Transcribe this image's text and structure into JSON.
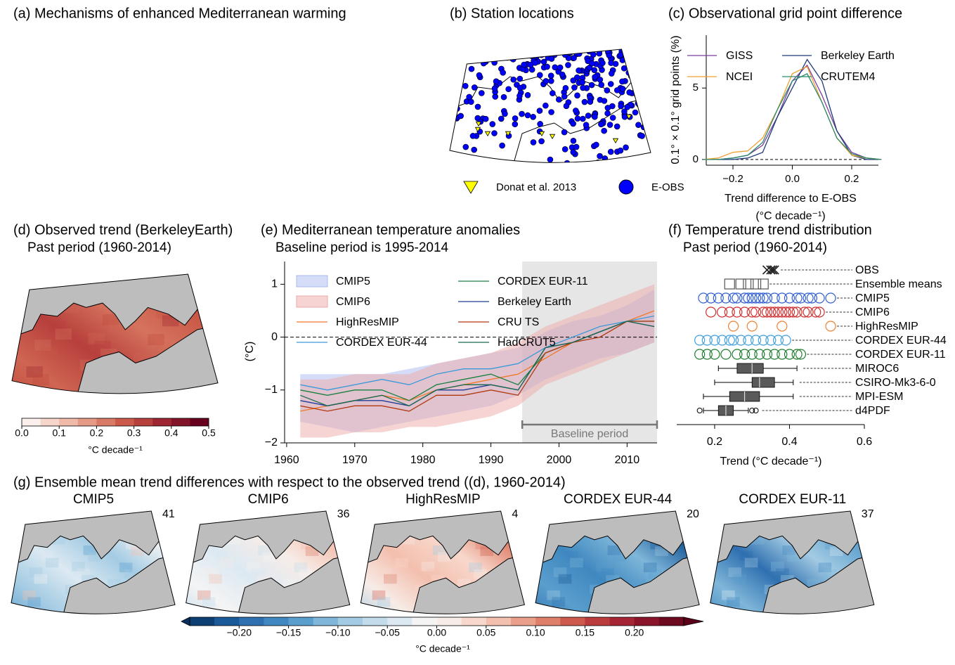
{
  "panel_a": {
    "title": "(a) Mechanisms of enhanced Mediterranean warming"
  },
  "panel_b": {
    "title": "(b) Station locations",
    "legend": [
      {
        "name": "Donat et al. 2013",
        "color": "#ffff00",
        "marker": "triangle"
      },
      {
        "name": "E-OBS",
        "color": "#0000ff",
        "marker": "circle"
      }
    ]
  },
  "panel_d": {
    "title": "(d) Observed trend (BerkeleyEarth)",
    "subtitle": "Past period (1960-2014)",
    "colorbar": {
      "colors": [
        "#fbf0ec",
        "#f6d6cb",
        "#efbaa8",
        "#e49a85",
        "#d97a66",
        "#cc5a4b",
        "#b73f3c",
        "#9e2733",
        "#841429",
        "#67001f"
      ],
      "range": [
        0,
        0.5
      ],
      "ticks": [
        {
          "value": 0,
          "label": "0.0"
        },
        0.1,
        0.2,
        0.3,
        0.4,
        0.5
      ],
      "label": "°C decade⁻¹"
    }
  },
  "chart_data": [
    {
      "type": "line",
      "title": "(c) Observational grid point difference",
      "xlabel": [
        "Trend difference to E-OBS",
        "(°C decade⁻¹)"
      ],
      "ylabel": "0.1° × 0.1° grid points (%)",
      "x": [
        -0.3,
        -0.25,
        -0.2,
        -0.15,
        -0.1,
        -0.05,
        0,
        0.05,
        0.1,
        0.15,
        0.2,
        0.25,
        0.3
      ],
      "series": [
        {
          "name": "GISS",
          "color": "#7b3f9e",
          "values": [
            0,
            0,
            0.1,
            0.3,
            1,
            3,
            5.5,
            6.6,
            4.5,
            2,
            0.5,
            0.1,
            0
          ]
        },
        {
          "name": "Berkeley Earth",
          "color": "#1f3a7a",
          "values": [
            0,
            0,
            0,
            0.1,
            0.5,
            3,
            5,
            7,
            5.5,
            2,
            0.3,
            0,
            0
          ]
        },
        {
          "name": "NCEI",
          "color": "#f0a030",
          "values": [
            0,
            0.1,
            0.5,
            0.6,
            1.5,
            3.5,
            6,
            6.5,
            4,
            1.5,
            0.3,
            0.1,
            0
          ]
        },
        {
          "name": "CRUTEM4",
          "color": "#2a8a6a",
          "values": [
            0,
            0,
            0.1,
            0.3,
            1.2,
            3.5,
            5.5,
            6,
            4,
            1.5,
            0.4,
            0.1,
            0
          ]
        }
      ],
      "xlim": [
        -0.29,
        0.29
      ],
      "ylim": [
        -0.4,
        8.7
      ],
      "xticks": [
        {
          "value": -0.2,
          "label": "−0.2"
        },
        {
          "value": 0,
          "label": "0.0"
        },
        0.2
      ],
      "yticks": [
        0,
        5
      ],
      "hline": 0
    },
    {
      "type": "line",
      "title": "(e) Mediterranean temperature anomalies",
      "subtitle": "Baseline period is 1995-2014",
      "ylabel": "(°C)",
      "x": [
        1962,
        1966,
        1970,
        1974,
        1978,
        1982,
        1986,
        1990,
        1994,
        1998,
        2002,
        2006,
        2010,
        2014
      ],
      "bands": [
        {
          "name": "CMIP5",
          "color": "#a9baf0",
          "lower": [
            -1.6,
            -1.7,
            -1.8,
            -1.7,
            -1.6,
            -1.5,
            -1.4,
            -1.3,
            -1.1,
            -0.8,
            -0.6,
            -0.4,
            -0.3,
            -0.1
          ],
          "upper": [
            -0.7,
            -0.7,
            -0.7,
            -0.7,
            -0.6,
            -0.5,
            -0.4,
            -0.3,
            -0.2,
            0.1,
            0.3,
            0.4,
            0.6,
            0.9
          ]
        },
        {
          "name": "CMIP6",
          "color": "#eeaaaa",
          "lower": [
            -1.9,
            -1.9,
            -1.8,
            -1.8,
            -1.7,
            -1.7,
            -1.6,
            -1.5,
            -1.3,
            -0.9,
            -0.7,
            -0.5,
            -0.3,
            -0.1
          ],
          "upper": [
            -0.8,
            -0.8,
            -0.7,
            -0.7,
            -0.7,
            -0.5,
            -0.4,
            -0.3,
            -0.1,
            0.2,
            0.4,
            0.6,
            0.8,
            1.0
          ]
        }
      ],
      "series": [
        {
          "name": "HighResMIP",
          "color": "#f07a2a",
          "values": [
            -1.4,
            -1.3,
            -1.2,
            -1.1,
            -1.2,
            -1.0,
            -0.9,
            -0.8,
            -0.7,
            -0.4,
            -0.1,
            0.1,
            0.3,
            0.5
          ]
        },
        {
          "name": "CORDEX EUR-44",
          "color": "#3a9ad9",
          "values": [
            -0.9,
            -1.0,
            -0.9,
            -0.8,
            -0.9,
            -0.7,
            -0.6,
            -0.6,
            -0.5,
            -0.2,
            0.0,
            0.2,
            0.3,
            0.4
          ]
        },
        {
          "name": "CORDEX EUR-11",
          "color": "#1a8040",
          "values": [
            -1.0,
            -1.1,
            -1.0,
            -1.0,
            -1.2,
            -0.9,
            -0.8,
            -0.7,
            -0.9,
            -0.3,
            -0.1,
            0.1,
            0.3,
            0.3
          ]
        },
        {
          "name": "Berkeley Earth",
          "color": "#1e3d9a",
          "values": [
            -1.2,
            -1.3,
            -1.2,
            -1.2,
            -1.3,
            -1.0,
            -1.0,
            -0.9,
            -1.0,
            -0.2,
            -0.1,
            0.1,
            0.3,
            0.2
          ]
        },
        {
          "name": "CRU TS",
          "color": "#b03a10",
          "values": [
            -1.3,
            -1.4,
            -1.3,
            -1.3,
            -1.4,
            -1.1,
            -1.1,
            -1.0,
            -1.1,
            -0.3,
            -0.1,
            0.0,
            0.3,
            0.3
          ]
        },
        {
          "name": "HadCRUT5",
          "color": "#1a6a50",
          "values": [
            -1.1,
            -1.3,
            -1.2,
            -1.1,
            -1.3,
            -1.0,
            -0.9,
            -0.9,
            -1.0,
            -0.2,
            -0.1,
            0.1,
            0.3,
            0.2
          ]
        }
      ],
      "xlim": [
        1959.7,
        2014.4
      ],
      "ylim": [
        -2.0,
        1.43
      ],
      "xticks": [
        1960,
        1970,
        1980,
        1990,
        2000,
        2010
      ],
      "yticks": [
        1,
        0,
        {
          "value": -1,
          "label": "−1"
        },
        {
          "value": -2,
          "label": "−2"
        }
      ],
      "hline": 0,
      "span": {
        "start": 1994.6,
        "end": 2014.4,
        "label": "Baseline period"
      }
    },
    {
      "type": "strip",
      "title": "(f) Temperature trend distribution",
      "subtitle": "Past period (1960-2014)",
      "xlabel": "Trend (°C decade⁻¹)",
      "series": [
        {
          "name": "OBS",
          "color": "#222222",
          "marker": "x",
          "values": [
            0.34,
            0.35,
            0.355,
            0.36
          ]
        },
        {
          "name": "Ensemble means",
          "color": "#555555",
          "marker": "square",
          "values": [
            0.24,
            0.27,
            0.29,
            0.31,
            0.33
          ]
        },
        {
          "name": "CMIP5",
          "color": "#3060d0",
          "marker": "circle",
          "values": [
            0.17,
            0.19,
            0.21,
            0.23,
            0.25,
            0.26,
            0.28,
            0.29,
            0.3,
            0.31,
            0.32,
            0.33,
            0.34,
            0.36,
            0.38,
            0.4,
            0.42,
            0.43,
            0.45,
            0.46,
            0.48,
            0.51
          ]
        },
        {
          "name": "CMIP6",
          "color": "#d03030",
          "marker": "circle",
          "values": [
            0.19,
            0.22,
            0.24,
            0.26,
            0.28,
            0.3,
            0.31,
            0.33,
            0.34,
            0.35,
            0.36,
            0.37,
            0.38,
            0.39,
            0.4,
            0.41,
            0.42,
            0.44,
            0.45,
            0.47,
            0.48
          ]
        },
        {
          "name": "HighResMIP",
          "color": "#f08030",
          "marker": "circle",
          "values": [
            0.25,
            0.3,
            0.38,
            0.51
          ]
        },
        {
          "name": "CORDEX EUR-44",
          "color": "#40a0e0",
          "marker": "circle",
          "values": [
            0.16,
            0.18,
            0.2,
            0.22,
            0.24,
            0.25,
            0.27,
            0.29,
            0.31,
            0.33,
            0.35,
            0.37,
            0.39
          ]
        },
        {
          "name": "CORDEX EUR-11",
          "color": "#208030",
          "marker": "circle",
          "values": [
            0.16,
            0.18,
            0.2,
            0.23,
            0.26,
            0.28,
            0.3,
            0.32,
            0.34,
            0.36,
            0.38,
            0.4,
            0.42,
            0.43
          ]
        },
        {
          "name": "MIROC6",
          "color": "#5a5a5a",
          "marker": "box",
          "values": [
            0.21,
            0.26,
            0.3,
            0.33,
            0.42
          ]
        },
        {
          "name": "CSIRO-Mk3-6-0",
          "color": "#5a5a5a",
          "marker": "box",
          "values": [
            0.2,
            0.3,
            0.32,
            0.36,
            0.41
          ]
        },
        {
          "name": "MPI-ESM",
          "color": "#5a5a5a",
          "marker": "box",
          "values": [
            0.17,
            0.24,
            0.28,
            0.32,
            0.41
          ]
        },
        {
          "name": "d4PDF",
          "color": "#5a5a5a",
          "marker": "box",
          "values": [
            0.17,
            0.21,
            0.23,
            0.25,
            0.29
          ],
          "outliers": [
            0.16,
            0.3,
            0.31
          ]
        }
      ],
      "xlim": [
        0.1,
        0.6
      ],
      "xticks": [
        0.2,
        0.4,
        0.6
      ]
    }
  ],
  "panel_g": {
    "title": "(g) Ensemble mean trend differences with respect to the observed trend ((d), 1960-2014)",
    "maps": [
      {
        "title": "CMIP5",
        "count": 41
      },
      {
        "title": "CMIP6",
        "count": 36
      },
      {
        "title": "HighResMIP",
        "count": 4
      },
      {
        "title": "CORDEX EUR-44",
        "count": 20
      },
      {
        "title": "CORDEX EUR-11",
        "count": 37
      }
    ],
    "colorbar": {
      "colors": [
        "#0d3f75",
        "#1a5a99",
        "#2f70b0",
        "#3f88c0",
        "#5a9ecd",
        "#7fb6d9",
        "#a3cbe3",
        "#c2dcec",
        "#dce9f2",
        "#f4f4f4",
        "#f7ece7",
        "#f8d8cc",
        "#f3bfae",
        "#ea9f8a",
        "#de7f6a",
        "#cd5b4d",
        "#ba3c3c",
        "#a52535",
        "#8a1429",
        "#6d0a20"
      ],
      "under_color": "#08305e",
      "over_color": "#5a0018",
      "range": [
        -0.25,
        0.25
      ],
      "ticks": [
        {
          "value": -0.2,
          "label": "−0.20"
        },
        {
          "value": -0.15,
          "label": "−0.15"
        },
        {
          "value": -0.1,
          "label": "−0.10"
        },
        {
          "value": -0.05,
          "label": "−0.05"
        },
        {
          "value": 0,
          "label": "0.00"
        },
        {
          "value": 0.05,
          "label": "0.05"
        },
        {
          "value": 0.1,
          "label": "0.10"
        },
        {
          "value": 0.15,
          "label": "0.15"
        },
        {
          "value": 0.2,
          "label": "0.20"
        }
      ],
      "label": "°C decade⁻¹"
    }
  }
}
